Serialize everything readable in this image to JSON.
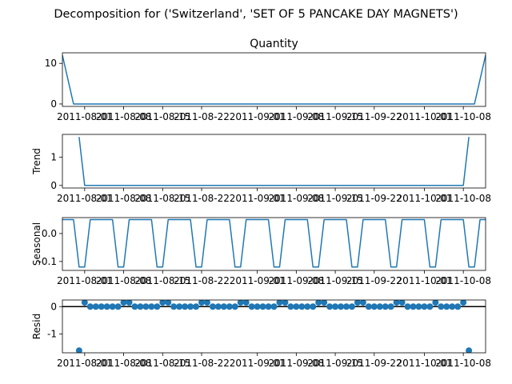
{
  "figure": {
    "suptitle": "Decomposition for ('Switzerland', 'SET OF 5 PANCAKE DAY MAGNETS')"
  },
  "colors": {
    "series": "#1f77b4",
    "axis": "#000000",
    "zero_line": "#000000"
  },
  "x_tick_labels": [
    "2011-08-01",
    "2011-08-08",
    "2011-08-15",
    "2011-08-22",
    "2011-09-01",
    "2011-09-08",
    "2011-09-15",
    "2011-09-22",
    "2011-10-01",
    "2011-10-08"
  ],
  "chart_data": [
    {
      "type": "line",
      "title": "Quantity",
      "ylabel": "",
      "x_range": [
        "2011-07-28",
        "2011-10-12"
      ],
      "ylim": [
        -0.6,
        12.6
      ],
      "yticks": [
        0,
        10
      ],
      "grid": false,
      "x": [
        "2011-07-28",
        "2011-07-30",
        "2011-10-10",
        "2011-10-12"
      ],
      "values": [
        12,
        0,
        0,
        12
      ]
    },
    {
      "type": "line",
      "title": "",
      "ylabel": "Trend",
      "x_range": [
        "2011-07-28",
        "2011-10-12"
      ],
      "ylim": [
        -0.09,
        1.8
      ],
      "yticks": [
        0,
        1
      ],
      "grid": false,
      "x": [
        "2011-07-31",
        "2011-08-01",
        "2011-10-08",
        "2011-10-09"
      ],
      "values": [
        1.71,
        0,
        0,
        1.71
      ]
    },
    {
      "type": "line",
      "title": "",
      "ylabel": "Seasonal",
      "x_range": [
        "2011-07-28",
        "2011-10-12"
      ],
      "ylim": [
        -0.132,
        0.057
      ],
      "yticks": [
        0.0,
        -0.1
      ],
      "grid": false,
      "pattern_start": "2011-07-28",
      "period_days": 7,
      "pattern_values": [
        0.05,
        0.05,
        0.05,
        -0.12,
        -0.12,
        0.05,
        0.05
      ],
      "x_end": "2011-10-12"
    },
    {
      "type": "scatter",
      "title": "",
      "ylabel": "Resid",
      "x_range": [
        "2011-07-28",
        "2011-10-12"
      ],
      "ylim": [
        -1.68,
        0.24
      ],
      "yticks": [
        0,
        -1
      ],
      "grid": false,
      "reference_line": 0,
      "x_start": "2011-07-31",
      "x_end": "2011-10-09",
      "default_value": 0,
      "overrides": [
        {
          "x": "2011-07-31",
          "value": -1.6
        },
        {
          "x": "2011-08-01",
          "value": 0.15
        },
        {
          "x": "2011-08-08",
          "value": 0.15
        },
        {
          "x": "2011-08-09",
          "value": 0.15
        },
        {
          "x": "2011-08-15",
          "value": 0.15
        },
        {
          "x": "2011-08-16",
          "value": 0.15
        },
        {
          "x": "2011-08-22",
          "value": 0.15
        },
        {
          "x": "2011-08-23",
          "value": 0.15
        },
        {
          "x": "2011-08-29",
          "value": 0.15
        },
        {
          "x": "2011-08-30",
          "value": 0.15
        },
        {
          "x": "2011-09-05",
          "value": 0.15
        },
        {
          "x": "2011-09-06",
          "value": 0.15
        },
        {
          "x": "2011-09-12",
          "value": 0.15
        },
        {
          "x": "2011-09-13",
          "value": 0.15
        },
        {
          "x": "2011-09-19",
          "value": 0.15
        },
        {
          "x": "2011-09-20",
          "value": 0.15
        },
        {
          "x": "2011-09-26",
          "value": 0.15
        },
        {
          "x": "2011-09-27",
          "value": 0.15
        },
        {
          "x": "2011-10-03",
          "value": 0.15
        },
        {
          "x": "2011-10-08",
          "value": 0.15
        },
        {
          "x": "2011-10-09",
          "value": -1.6
        }
      ]
    }
  ]
}
